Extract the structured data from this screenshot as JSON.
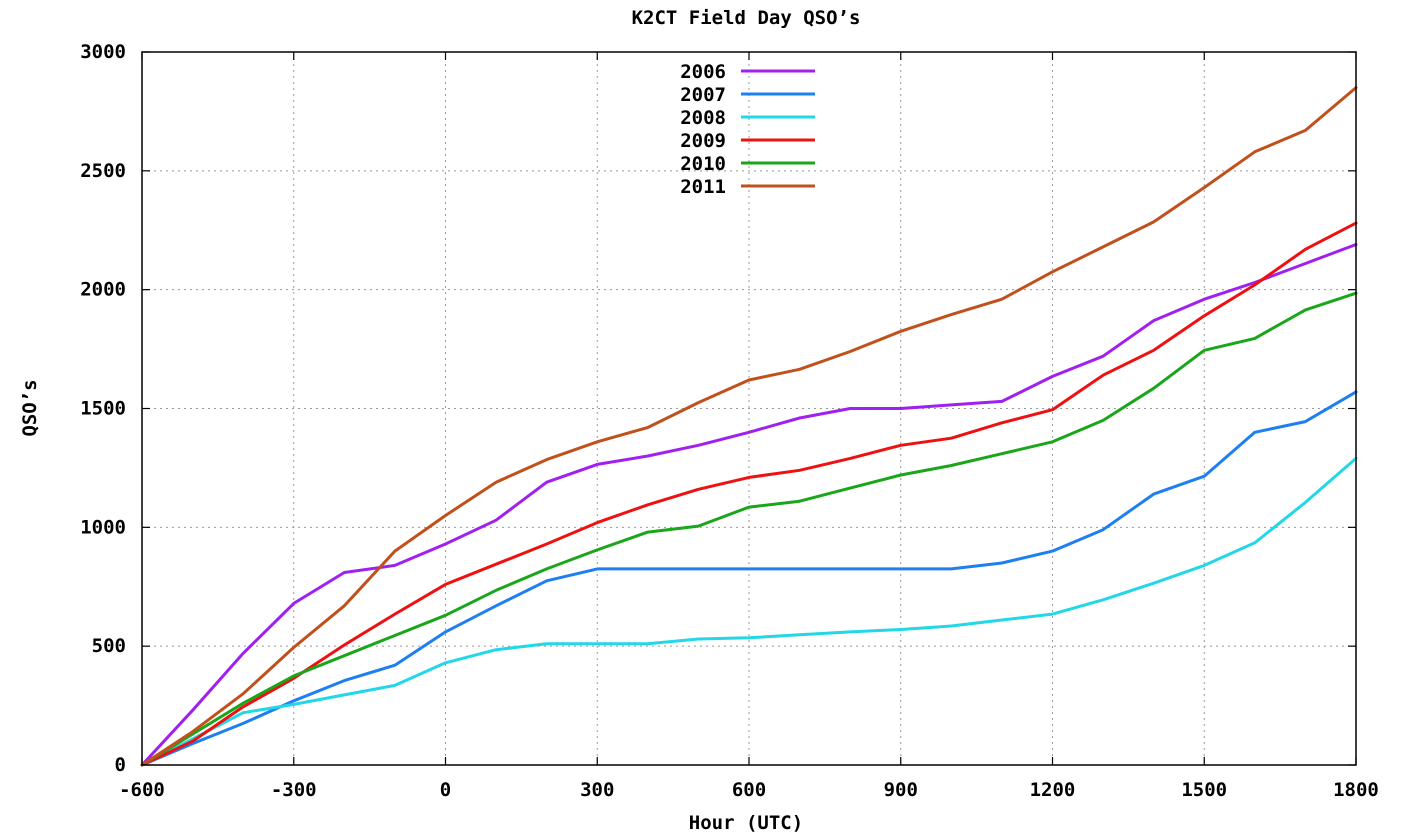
{
  "chart_data": {
    "type": "line",
    "title": "K2CT Field Day QSO’s",
    "xlabel": "Hour (UTC)",
    "ylabel": "QSO’s",
    "xlim": [
      -600,
      1800
    ],
    "ylim": [
      0,
      3000
    ],
    "xticks": [
      -600,
      -300,
      0,
      300,
      600,
      900,
      1200,
      1500,
      1800
    ],
    "xtick_labels": [
      "-600",
      "-300",
      "0",
      "300",
      "600",
      "900",
      "1200",
      "1500",
      "1800"
    ],
    "yticks": [
      0,
      500,
      1000,
      1500,
      2000,
      2500,
      3000
    ],
    "ytick_labels": [
      "0",
      "500",
      "1000",
      "1500",
      "2000",
      "2500",
      "3000"
    ],
    "grid": true,
    "legend_position": "top-center",
    "x": [
      -600,
      -500,
      -400,
      -300,
      -200,
      -100,
      0,
      100,
      200,
      300,
      400,
      500,
      600,
      700,
      800,
      900,
      1000,
      1100,
      1200,
      1300,
      1400,
      1500,
      1600,
      1700,
      1800
    ],
    "series": [
      {
        "name": "2006",
        "color": "#a020f0",
        "values": [
          0,
          230,
          470,
          680,
          810,
          840,
          930,
          1030,
          1190,
          1265,
          1300,
          1345,
          1400,
          1460,
          1500,
          1500,
          1515,
          1530,
          1635,
          1720,
          1870,
          1960,
          2030,
          2110,
          2190
        ]
      },
      {
        "name": "2007",
        "color": "#1e7ff0",
        "values": [
          0,
          90,
          175,
          270,
          355,
          420,
          560,
          670,
          775,
          825,
          825,
          825,
          825,
          825,
          825,
          825,
          825,
          850,
          900,
          990,
          1140,
          1215,
          1400,
          1445,
          1570
        ]
      },
      {
        "name": "2008",
        "color": "#22d7e8",
        "values": [
          0,
          110,
          220,
          255,
          295,
          335,
          430,
          485,
          510,
          510,
          510,
          530,
          535,
          548,
          560,
          570,
          585,
          610,
          635,
          695,
          765,
          840,
          935,
          1105,
          1290
        ]
      },
      {
        "name": "2009",
        "color": "#ee1111",
        "values": [
          0,
          100,
          245,
          365,
          505,
          635,
          760,
          845,
          930,
          1020,
          1095,
          1160,
          1210,
          1240,
          1290,
          1345,
          1375,
          1440,
          1495,
          1640,
          1745,
          1890,
          2020,
          2170,
          2280
        ]
      },
      {
        "name": "2010",
        "color": "#1aa61a",
        "values": [
          0,
          130,
          260,
          375,
          460,
          545,
          630,
          735,
          825,
          905,
          980,
          1005,
          1085,
          1110,
          1165,
          1220,
          1260,
          1310,
          1360,
          1450,
          1585,
          1745,
          1795,
          1915,
          1985
        ]
      },
      {
        "name": "2011",
        "color": "#c0501c",
        "values": [
          0,
          140,
          300,
          495,
          670,
          900,
          1050,
          1190,
          1285,
          1360,
          1420,
          1525,
          1620,
          1665,
          1740,
          1825,
          1895,
          1960,
          2075,
          2180,
          2285,
          2430,
          2580,
          2670,
          2850
        ]
      }
    ]
  }
}
